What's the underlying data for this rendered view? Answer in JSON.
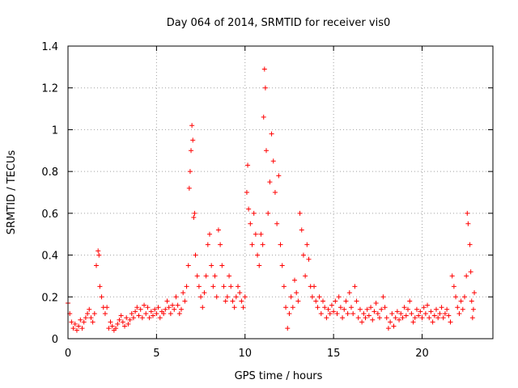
{
  "chart_data": {
    "type": "scatter",
    "title": "Day 064 of 2014, SRMTID for receiver vis0",
    "xlabel": "GPS time / hours",
    "ylabel": "SRMTID / TECUs",
    "xlim": [
      0,
      24
    ],
    "ylim": [
      0,
      1.4
    ],
    "x_ticks": [
      0,
      5,
      10,
      15,
      20
    ],
    "x_tick_labels": [
      "0",
      "5",
      "10",
      "15",
      "20"
    ],
    "y_ticks": [
      0,
      0.2,
      0.4,
      0.6,
      0.8,
      1,
      1.2,
      1.4
    ],
    "y_tick_labels": [
      "0",
      "0.2",
      "0.4",
      "0.6",
      "0.8",
      "1",
      "1.2",
      "1.4"
    ],
    "grid": true,
    "marker": "+",
    "color": "#ff0000",
    "series": [
      {
        "name": "SRMTID",
        "points": [
          [
            0.0,
            0.17
          ],
          [
            0.1,
            0.12
          ],
          [
            0.2,
            0.08
          ],
          [
            0.3,
            0.05
          ],
          [
            0.4,
            0.07
          ],
          [
            0.5,
            0.04
          ],
          [
            0.6,
            0.06
          ],
          [
            0.7,
            0.09
          ],
          [
            0.8,
            0.05
          ],
          [
            0.9,
            0.08
          ],
          [
            1.0,
            0.1
          ],
          [
            1.1,
            0.12
          ],
          [
            1.2,
            0.14
          ],
          [
            1.3,
            0.1
          ],
          [
            1.4,
            0.08
          ],
          [
            1.5,
            0.12
          ],
          [
            1.6,
            0.35
          ],
          [
            1.7,
            0.42
          ],
          [
            1.75,
            0.4
          ],
          [
            1.8,
            0.25
          ],
          [
            1.9,
            0.2
          ],
          [
            2.0,
            0.15
          ],
          [
            2.1,
            0.12
          ],
          [
            2.2,
            0.15
          ],
          [
            2.3,
            0.05
          ],
          [
            2.4,
            0.08
          ],
          [
            2.5,
            0.06
          ],
          [
            2.6,
            0.04
          ],
          [
            2.7,
            0.05
          ],
          [
            2.8,
            0.07
          ],
          [
            2.9,
            0.09
          ],
          [
            3.0,
            0.11
          ],
          [
            3.1,
            0.08
          ],
          [
            3.2,
            0.06
          ],
          [
            3.3,
            0.1
          ],
          [
            3.4,
            0.07
          ],
          [
            3.5,
            0.09
          ],
          [
            3.6,
            0.12
          ],
          [
            3.7,
            0.1
          ],
          [
            3.8,
            0.13
          ],
          [
            3.9,
            0.15
          ],
          [
            4.0,
            0.11
          ],
          [
            4.1,
            0.14
          ],
          [
            4.2,
            0.1
          ],
          [
            4.3,
            0.16
          ],
          [
            4.4,
            0.12
          ],
          [
            4.5,
            0.15
          ],
          [
            4.6,
            0.1
          ],
          [
            4.7,
            0.13
          ],
          [
            4.8,
            0.11
          ],
          [
            4.9,
            0.14
          ],
          [
            5.0,
            0.12
          ],
          [
            5.1,
            0.15
          ],
          [
            5.2,
            0.1
          ],
          [
            5.3,
            0.13
          ],
          [
            5.4,
            0.12
          ],
          [
            5.5,
            0.14
          ],
          [
            5.6,
            0.18
          ],
          [
            5.7,
            0.15
          ],
          [
            5.8,
            0.12
          ],
          [
            5.9,
            0.16
          ],
          [
            6.0,
            0.14
          ],
          [
            6.1,
            0.2
          ],
          [
            6.2,
            0.16
          ],
          [
            6.3,
            0.12
          ],
          [
            6.4,
            0.14
          ],
          [
            6.5,
            0.22
          ],
          [
            6.6,
            0.18
          ],
          [
            6.7,
            0.25
          ],
          [
            6.8,
            0.35
          ],
          [
            6.85,
            0.72
          ],
          [
            6.9,
            0.8
          ],
          [
            6.95,
            0.9
          ],
          [
            7.0,
            1.02
          ],
          [
            7.05,
            0.95
          ],
          [
            7.1,
            0.58
          ],
          [
            7.15,
            0.6
          ],
          [
            7.2,
            0.4
          ],
          [
            7.3,
            0.3
          ],
          [
            7.4,
            0.25
          ],
          [
            7.5,
            0.2
          ],
          [
            7.6,
            0.15
          ],
          [
            7.7,
            0.22
          ],
          [
            7.8,
            0.3
          ],
          [
            7.9,
            0.45
          ],
          [
            8.0,
            0.5
          ],
          [
            8.1,
            0.35
          ],
          [
            8.2,
            0.25
          ],
          [
            8.3,
            0.3
          ],
          [
            8.4,
            0.2
          ],
          [
            8.5,
            0.52
          ],
          [
            8.6,
            0.45
          ],
          [
            8.7,
            0.35
          ],
          [
            8.8,
            0.25
          ],
          [
            8.9,
            0.18
          ],
          [
            9.0,
            0.2
          ],
          [
            9.1,
            0.3
          ],
          [
            9.2,
            0.25
          ],
          [
            9.3,
            0.18
          ],
          [
            9.4,
            0.15
          ],
          [
            9.5,
            0.2
          ],
          [
            9.6,
            0.25
          ],
          [
            9.7,
            0.22
          ],
          [
            9.8,
            0.18
          ],
          [
            9.9,
            0.15
          ],
          [
            10.0,
            0.2
          ],
          [
            10.1,
            0.7
          ],
          [
            10.15,
            0.83
          ],
          [
            10.2,
            0.62
          ],
          [
            10.3,
            0.55
          ],
          [
            10.4,
            0.45
          ],
          [
            10.5,
            0.6
          ],
          [
            10.6,
            0.5
          ],
          [
            10.7,
            0.4
          ],
          [
            10.8,
            0.35
          ],
          [
            10.9,
            0.5
          ],
          [
            11.0,
            0.45
          ],
          [
            11.05,
            1.06
          ],
          [
            11.1,
            1.29
          ],
          [
            11.15,
            1.2
          ],
          [
            11.2,
            0.9
          ],
          [
            11.3,
            0.6
          ],
          [
            11.4,
            0.75
          ],
          [
            11.5,
            0.98
          ],
          [
            11.6,
            0.85
          ],
          [
            11.7,
            0.7
          ],
          [
            11.8,
            0.55
          ],
          [
            11.9,
            0.78
          ],
          [
            12.0,
            0.45
          ],
          [
            12.1,
            0.35
          ],
          [
            12.2,
            0.25
          ],
          [
            12.3,
            0.15
          ],
          [
            12.4,
            0.05
          ],
          [
            12.5,
            0.12
          ],
          [
            12.6,
            0.2
          ],
          [
            12.7,
            0.15
          ],
          [
            12.8,
            0.28
          ],
          [
            12.9,
            0.22
          ],
          [
            13.0,
            0.18
          ],
          [
            13.1,
            0.6
          ],
          [
            13.2,
            0.52
          ],
          [
            13.3,
            0.4
          ],
          [
            13.4,
            0.3
          ],
          [
            13.5,
            0.45
          ],
          [
            13.6,
            0.38
          ],
          [
            13.7,
            0.25
          ],
          [
            13.8,
            0.2
          ],
          [
            13.9,
            0.25
          ],
          [
            14.0,
            0.18
          ],
          [
            14.1,
            0.15
          ],
          [
            14.2,
            0.2
          ],
          [
            14.3,
            0.12
          ],
          [
            14.4,
            0.18
          ],
          [
            14.5,
            0.15
          ],
          [
            14.6,
            0.1
          ],
          [
            14.7,
            0.14
          ],
          [
            14.8,
            0.12
          ],
          [
            14.9,
            0.16
          ],
          [
            15.0,
            0.13
          ],
          [
            15.1,
            0.18
          ],
          [
            15.2,
            0.12
          ],
          [
            15.3,
            0.2
          ],
          [
            15.4,
            0.15
          ],
          [
            15.5,
            0.1
          ],
          [
            15.6,
            0.14
          ],
          [
            15.7,
            0.18
          ],
          [
            15.8,
            0.12
          ],
          [
            15.9,
            0.22
          ],
          [
            16.0,
            0.15
          ],
          [
            16.1,
            0.12
          ],
          [
            16.2,
            0.25
          ],
          [
            16.3,
            0.18
          ],
          [
            16.4,
            0.1
          ],
          [
            16.5,
            0.14
          ],
          [
            16.6,
            0.08
          ],
          [
            16.7,
            0.12
          ],
          [
            16.8,
            0.1
          ],
          [
            16.9,
            0.14
          ],
          [
            17.0,
            0.11
          ],
          [
            17.1,
            0.15
          ],
          [
            17.2,
            0.09
          ],
          [
            17.3,
            0.13
          ],
          [
            17.4,
            0.17
          ],
          [
            17.5,
            0.12
          ],
          [
            17.6,
            0.1
          ],
          [
            17.7,
            0.14
          ],
          [
            17.8,
            0.2
          ],
          [
            17.9,
            0.15
          ],
          [
            18.0,
            0.1
          ],
          [
            18.1,
            0.05
          ],
          [
            18.2,
            0.08
          ],
          [
            18.3,
            0.12
          ],
          [
            18.4,
            0.06
          ],
          [
            18.5,
            0.1
          ],
          [
            18.6,
            0.13
          ],
          [
            18.7,
            0.09
          ],
          [
            18.8,
            0.12
          ],
          [
            18.9,
            0.1
          ],
          [
            19.0,
            0.15
          ],
          [
            19.1,
            0.11
          ],
          [
            19.2,
            0.14
          ],
          [
            19.3,
            0.18
          ],
          [
            19.4,
            0.12
          ],
          [
            19.5,
            0.08
          ],
          [
            19.6,
            0.1
          ],
          [
            19.7,
            0.14
          ],
          [
            19.8,
            0.11
          ],
          [
            19.9,
            0.13
          ],
          [
            20.0,
            0.1
          ],
          [
            20.1,
            0.15
          ],
          [
            20.2,
            0.12
          ],
          [
            20.3,
            0.16
          ],
          [
            20.4,
            0.1
          ],
          [
            20.5,
            0.13
          ],
          [
            20.6,
            0.08
          ],
          [
            20.7,
            0.11
          ],
          [
            20.8,
            0.14
          ],
          [
            20.9,
            0.1
          ],
          [
            21.0,
            0.12
          ],
          [
            21.1,
            0.15
          ],
          [
            21.2,
            0.1
          ],
          [
            21.3,
            0.12
          ],
          [
            21.4,
            0.14
          ],
          [
            21.5,
            0.11
          ],
          [
            21.6,
            0.08
          ],
          [
            21.7,
            0.3
          ],
          [
            21.8,
            0.25
          ],
          [
            21.9,
            0.2
          ],
          [
            22.0,
            0.15
          ],
          [
            22.1,
            0.12
          ],
          [
            22.2,
            0.18
          ],
          [
            22.3,
            0.14
          ],
          [
            22.4,
            0.2
          ],
          [
            22.5,
            0.3
          ],
          [
            22.55,
            0.6
          ],
          [
            22.6,
            0.55
          ],
          [
            22.7,
            0.45
          ],
          [
            22.75,
            0.32
          ],
          [
            22.8,
            0.18
          ],
          [
            22.85,
            0.1
          ],
          [
            22.9,
            0.14
          ],
          [
            22.95,
            0.22
          ]
        ]
      }
    ]
  }
}
